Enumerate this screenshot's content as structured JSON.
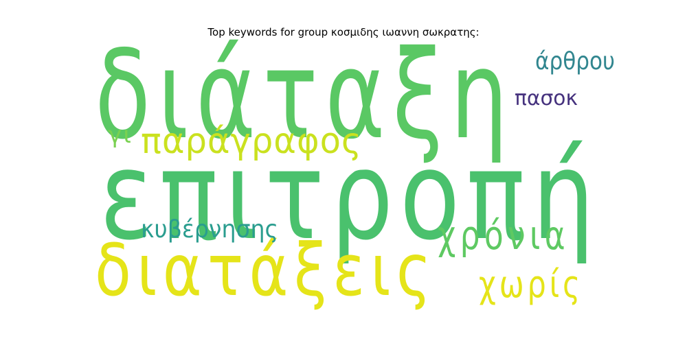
{
  "chart_data": {
    "type": "wordcloud",
    "title": "Top keywords for group κοσμιδης ιωαννη σωκρατης:",
    "words": [
      {
        "text": "διάταξη",
        "weight": 1.0,
        "color": "#5ac864"
      },
      {
        "text": "επιτροπή",
        "weight": 0.98,
        "color": "#4ac16d"
      },
      {
        "text": "διατάξεις",
        "weight": 0.7,
        "color": "#e5e419"
      },
      {
        "text": "παράγραφος",
        "weight": 0.38,
        "color": "#cae11f"
      },
      {
        "text": "χρόνια",
        "weight": 0.4,
        "color": "#5ec962"
      },
      {
        "text": "χωρίς",
        "weight": 0.36,
        "color": "#e5e419"
      },
      {
        "text": "κυβέρνησης",
        "weight": 0.25,
        "color": "#2a9d8f"
      },
      {
        "text": "άρθρου",
        "weight": 0.25,
        "color": "#31868f"
      },
      {
        "text": "πασοκ",
        "weight": 0.22,
        "color": "#46327e"
      },
      {
        "text": "γι",
        "weight": 0.22,
        "color": "#7ad151"
      }
    ]
  }
}
